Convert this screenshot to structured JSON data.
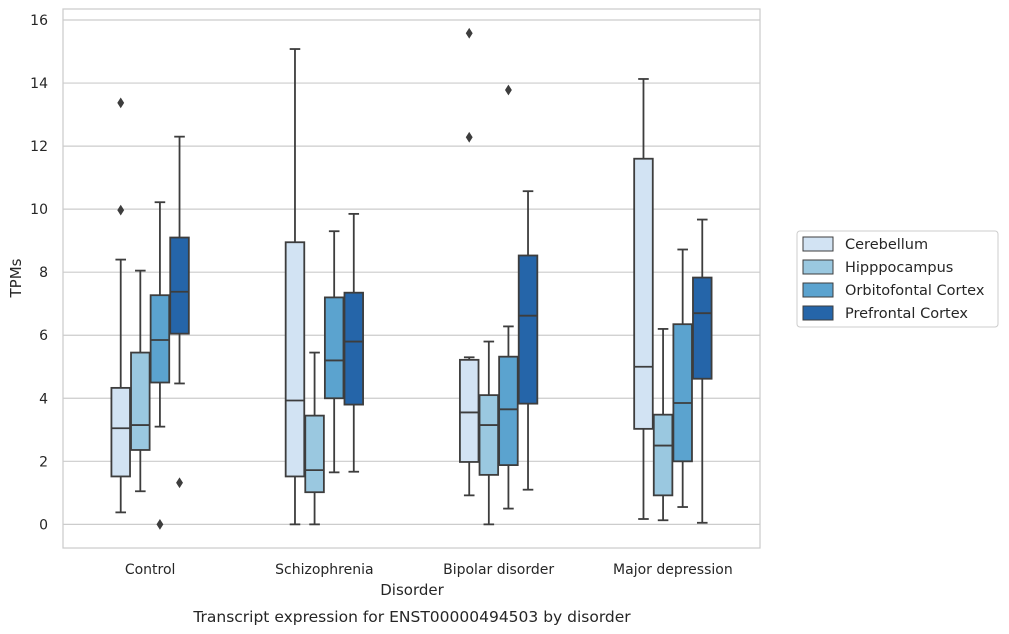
{
  "chart_data": {
    "type": "box",
    "xlabel": "Disorder",
    "ylabel": "TPMs",
    "caption": "Transcript expression for ENST00000494503 by disorder",
    "ylim": [
      -0.75,
      16.35
    ],
    "yticks": [
      0,
      2,
      4,
      6,
      8,
      10,
      12,
      14,
      16
    ],
    "grid": "horizontal",
    "legend_position": "right",
    "categories": [
      "Control",
      "Schizophrenia",
      "Bipolar disorder",
      "Major depression"
    ],
    "series": [
      {
        "name": "Cerebellum",
        "color": "#d2e3f3",
        "boxes": [
          {
            "whisker_low": 0.38,
            "q1": 1.52,
            "median": 3.05,
            "q3": 4.33,
            "whisker_high": 8.4,
            "outliers": [
              9.97,
              13.37
            ]
          },
          {
            "whisker_low": 0.0,
            "q1": 1.52,
            "median": 3.93,
            "q3": 8.95,
            "whisker_high": 15.08,
            "outliers": []
          },
          {
            "whisker_low": 0.92,
            "q1": 1.98,
            "median": 3.55,
            "q3": 5.22,
            "whisker_high": 5.3,
            "outliers": [
              12.28,
              15.58
            ]
          },
          {
            "whisker_low": 0.17,
            "q1": 3.03,
            "median": 5.0,
            "q3": 11.6,
            "whisker_high": 14.13,
            "outliers": []
          }
        ]
      },
      {
        "name": "Hipppocampus",
        "color": "#9ac8e0",
        "boxes": [
          {
            "whisker_low": 1.05,
            "q1": 2.36,
            "median": 3.15,
            "q3": 5.45,
            "whisker_high": 8.05,
            "outliers": []
          },
          {
            "whisker_low": 0.0,
            "q1": 1.02,
            "median": 1.72,
            "q3": 3.45,
            "whisker_high": 5.45,
            "outliers": []
          },
          {
            "whisker_low": 0.0,
            "q1": 1.57,
            "median": 3.15,
            "q3": 4.1,
            "whisker_high": 5.8,
            "outliers": []
          },
          {
            "whisker_low": 0.13,
            "q1": 0.92,
            "median": 2.5,
            "q3": 3.48,
            "whisker_high": 6.2,
            "outliers": []
          }
        ]
      },
      {
        "name": "Orbitofontal Cortex",
        "color": "#5ba3cf",
        "boxes": [
          {
            "whisker_low": 3.1,
            "q1": 4.5,
            "median": 5.85,
            "q3": 7.27,
            "whisker_high": 10.22,
            "outliers": [
              0.0
            ]
          },
          {
            "whisker_low": 1.65,
            "q1": 4.0,
            "median": 5.2,
            "q3": 7.2,
            "whisker_high": 9.3,
            "outliers": []
          },
          {
            "whisker_low": 0.5,
            "q1": 1.88,
            "median": 3.65,
            "q3": 5.32,
            "whisker_high": 6.28,
            "outliers": [
              13.78
            ]
          },
          {
            "whisker_low": 0.55,
            "q1": 2.0,
            "median": 3.85,
            "q3": 6.35,
            "whisker_high": 8.72,
            "outliers": []
          }
        ]
      },
      {
        "name": "Prefrontal Cortex",
        "color": "#2565a9",
        "boxes": [
          {
            "whisker_low": 4.47,
            "q1": 6.05,
            "median": 7.38,
            "q3": 9.1,
            "whisker_high": 12.3,
            "outliers": [
              1.32
            ]
          },
          {
            "whisker_low": 1.67,
            "q1": 3.8,
            "median": 5.8,
            "q3": 7.35,
            "whisker_high": 9.85,
            "outliers": []
          },
          {
            "whisker_low": 1.1,
            "q1": 3.83,
            "median": 6.62,
            "q3": 8.53,
            "whisker_high": 10.57,
            "outliers": []
          },
          {
            "whisker_low": 0.05,
            "q1": 4.62,
            "median": 6.7,
            "q3": 7.83,
            "whisker_high": 9.67,
            "outliers": []
          }
        ]
      }
    ]
  }
}
